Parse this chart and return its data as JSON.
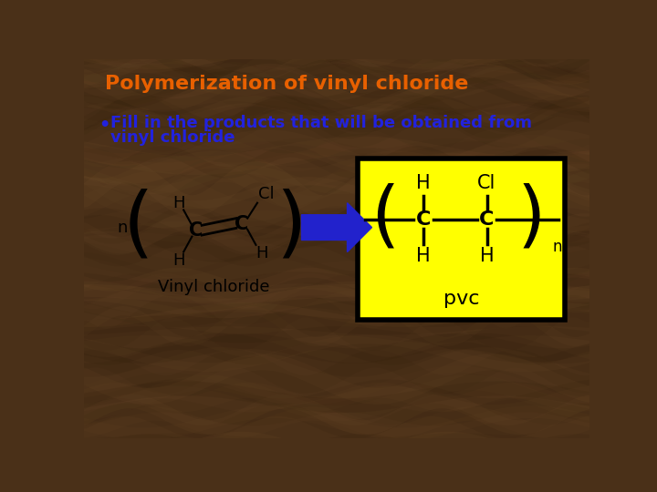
{
  "title": "Polymerization of vinyl chloride",
  "title_color": "#E86000",
  "title_fontsize": 16,
  "bullet_text_line1": "Fill in the products that will be obtained from",
  "bullet_text_line2": "vinyl chloride",
  "bullet_color": "#2222DD",
  "bullet_fontsize": 13,
  "bg_color": "#4A3018",
  "vinyl_label": "Vinyl chloride",
  "pvc_label": "pvc",
  "yellow_box_color": "#FFFF00",
  "arrow_color": "#2222CC",
  "text_color": "#000000",
  "brown_light": "#7A5530",
  "brown_dark": "#2A1A08"
}
